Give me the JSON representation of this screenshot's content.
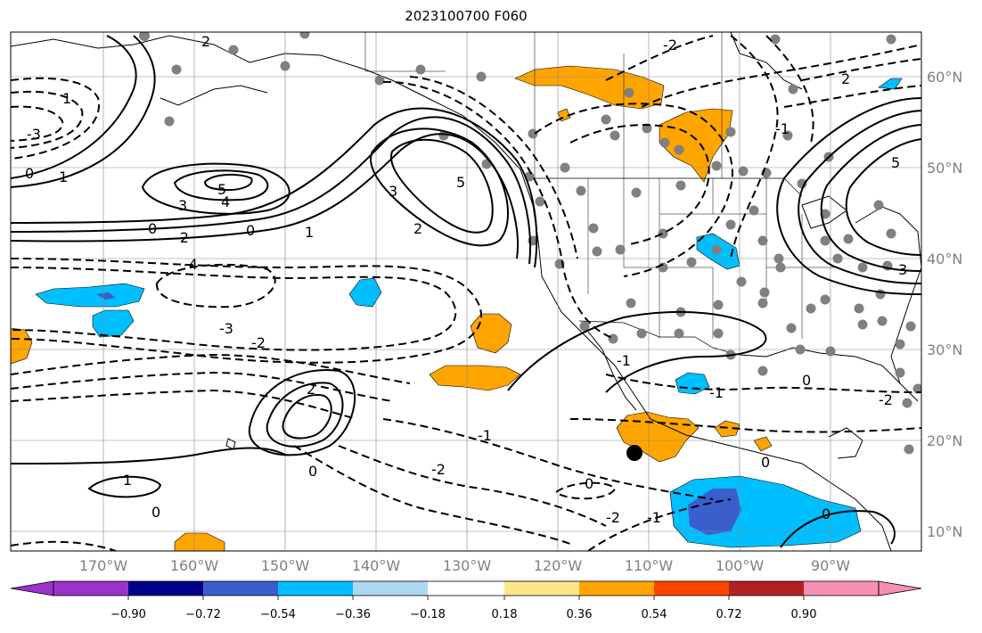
{
  "title": "2023100700 F060",
  "map": {
    "lon_range": [
      -180,
      -80
    ],
    "lat_range": [
      8,
      65
    ],
    "lon_ticks": [
      "170°W",
      "160°W",
      "150°W",
      "140°W",
      "130°W",
      "120°W",
      "110°W",
      "100°W",
      "90°W"
    ],
    "lat_ticks": [
      "60°N",
      "50°N",
      "40°N",
      "30°N",
      "20°N",
      "10°N"
    ],
    "grid": true,
    "marker": "black dot near 19°N 111°W",
    "station_dots": "gray dots over North America"
  },
  "colorbar": {
    "ticks": [
      "−0.90",
      "−0.72",
      "−0.54",
      "−0.36",
      "−0.18",
      "0.18",
      "0.36",
      "0.54",
      "0.72",
      "0.90"
    ],
    "colors": [
      "#9933cc",
      "#00008b",
      "#3a5fcd",
      "#00bfff",
      "#add8f0",
      "#ffffff",
      "#fce68a",
      "#ffa500",
      "#ff4500",
      "#b22222",
      "#f78fb3"
    ]
  },
  "contour_labels": {
    "l0a": "0",
    "l0b": "0",
    "l0c": "0",
    "l0d": "0",
    "l0e": "0",
    "l0f": "0",
    "l0g": "0",
    "l0h": "0",
    "l0i": "0",
    "l1a": "1",
    "l1b": "1",
    "l1c": "1",
    "l1d": "1",
    "l2a": "2",
    "l2b": "2",
    "l2c": "2",
    "l2d": "2",
    "l3a": "3",
    "l3b": "3",
    "l3c": "3",
    "l4a": "4",
    "l5a": "5",
    "l5b": "5",
    "l5c": "5",
    "ln1a": "-1",
    "ln1b": "-1",
    "ln1c": "-1",
    "ln1d": "-1",
    "ln1e": "-1",
    "ln2a": "-2",
    "ln2b": "-2",
    "ln2c": "-2",
    "ln2d": "-2",
    "ln2e": "-2",
    "ln2f": "-2",
    "ln3a": "-3",
    "ln3b": "-3",
    "ln4a": "-4"
  }
}
